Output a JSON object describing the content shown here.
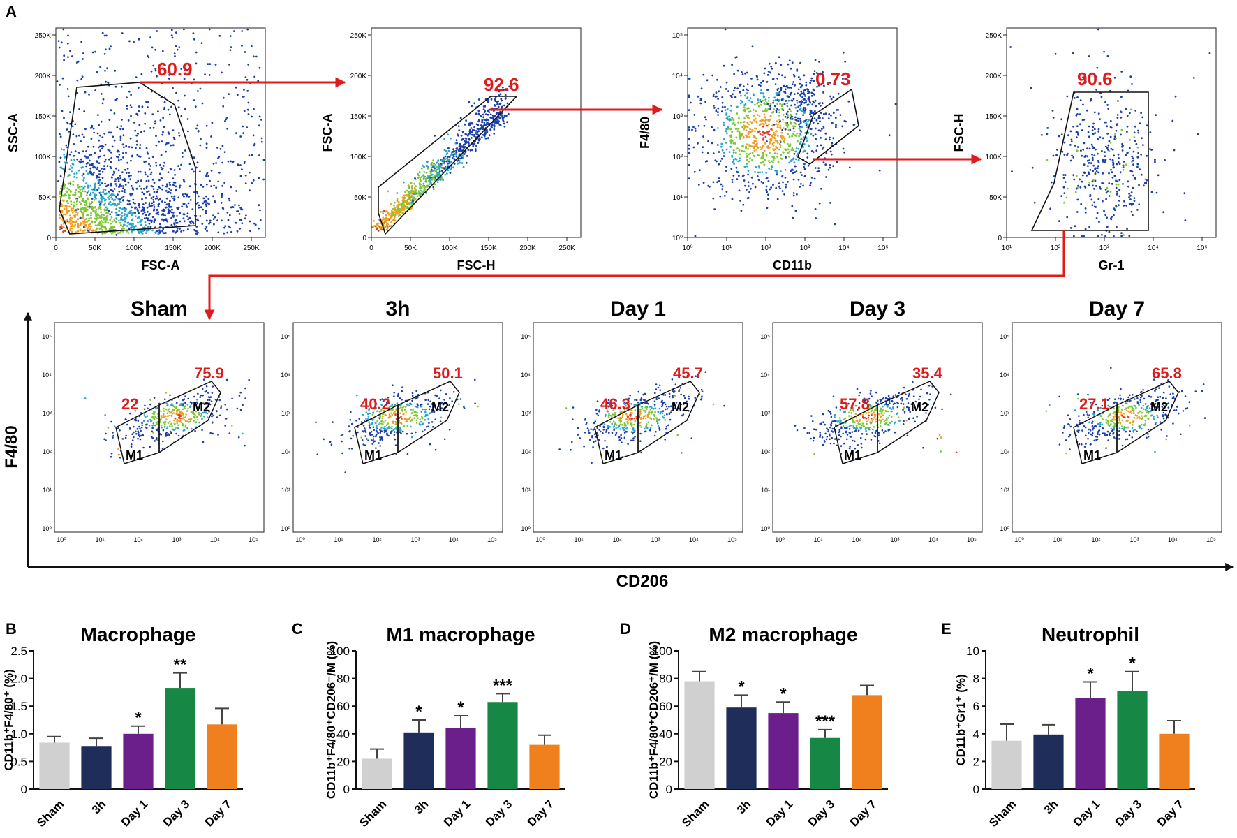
{
  "panel_labels": [
    "A",
    "B",
    "C",
    "D",
    "E"
  ],
  "colors": {
    "gate_pct": "#e01b1b",
    "arrow": "#e01b1b",
    "density_low": "#1c3fa8",
    "density_mid": "#2aa6c9",
    "density_high": "#7ec832",
    "density_peak": "#f0a020",
    "sham": "#d0d0d0",
    "h3": "#1f2d5a",
    "day1": "#6b1f8a",
    "day3": "#178745",
    "day7": "#f07f1e"
  },
  "gating": [
    {
      "id": "fsc-ssc",
      "xlabel": "FSC-A",
      "ylabel": "SSC-A",
      "x_ticks": [
        "0",
        "50K",
        "100K",
        "150K",
        "200K",
        "250K"
      ],
      "y_ticks": [
        "0",
        "50K",
        "100K",
        "150K",
        "200K",
        "250K"
      ],
      "gate_pct": "60.9"
    },
    {
      "id": "singlets",
      "xlabel": "FSC-H",
      "ylabel": "FSC-A",
      "x_ticks": [
        "0",
        "50K",
        "100K",
        "150K",
        "200K",
        "250K"
      ],
      "y_ticks": [
        "0",
        "50K",
        "100K",
        "150K",
        "200K",
        "250K"
      ],
      "gate_pct": "92.6"
    },
    {
      "id": "cd11b-f480",
      "xlabel": "CD11b",
      "ylabel": "F4/80",
      "x_ticks": [
        "10⁰",
        "10¹",
        "10²",
        "10³",
        "10⁴",
        "10⁵"
      ],
      "y_ticks": [
        "10⁰",
        "10¹",
        "10²",
        "10³",
        "10⁴",
        "10⁵"
      ],
      "gate_pct": "0.73"
    },
    {
      "id": "gr1",
      "xlabel": "Gr-1",
      "ylabel": "FSC-H",
      "x_ticks": [
        "10¹",
        "10²",
        "10³",
        "10⁴",
        "10⁵"
      ],
      "y_ticks": [
        "0",
        "50K",
        "100K",
        "150K",
        "200K",
        "250K"
      ],
      "gate_pct": "90.6"
    }
  ],
  "macro_panels": {
    "xlabel": "CD206",
    "ylabel": "F4/80",
    "log_ticks": [
      "10⁰",
      "10¹",
      "10²",
      "10³",
      "10⁴",
      "10⁵"
    ],
    "gate_m1": "M1",
    "gate_m2": "M2",
    "items": [
      {
        "title": "Sham",
        "m1_pct": "22",
        "m2_pct": "75.9"
      },
      {
        "title": "3h",
        "m1_pct": "40.2",
        "m2_pct": "50.1"
      },
      {
        "title": "Day 1",
        "m1_pct": "46.3",
        "m2_pct": "45.7"
      },
      {
        "title": "Day 3",
        "m1_pct": "57.8",
        "m2_pct": "35.4"
      },
      {
        "title": "Day 7",
        "m1_pct": "27.1",
        "m2_pct": "65.8"
      }
    ]
  },
  "chart_data": [
    {
      "panel": "B",
      "type": "bar",
      "title": "Macrophage",
      "ylabel": "CD11b⁺F4/80⁺ (%)",
      "categories": [
        "Sham",
        "3h",
        "Day 1",
        "Day 3",
        "Day 7"
      ],
      "values": [
        0.84,
        0.78,
        1.0,
        1.83,
        1.17
      ],
      "errors": [
        0.11,
        0.14,
        0.14,
        0.27,
        0.29
      ],
      "significance": [
        "",
        "",
        "*",
        "**",
        ""
      ],
      "ylim": [
        0,
        2.5
      ],
      "y_ticks": [
        "0",
        "0.5",
        "1.0",
        "1.5",
        "2.0",
        "2.5"
      ]
    },
    {
      "panel": "C",
      "type": "bar",
      "title": "M1 macrophage",
      "ylabel": "CD11b⁺F4/80⁺CD206⁻/M (%)",
      "categories": [
        "Sham",
        "3h",
        "Day 1",
        "Day 3",
        "Day 7"
      ],
      "values": [
        22,
        41,
        44,
        63,
        32
      ],
      "errors": [
        7,
        9,
        9,
        6,
        7
      ],
      "significance": [
        "",
        "*",
        "*",
        "***",
        ""
      ],
      "ylim": [
        0,
        100
      ],
      "y_ticks": [
        "0",
        "20",
        "40",
        "60",
        "80",
        "100"
      ]
    },
    {
      "panel": "D",
      "type": "bar",
      "title": "M2 macrophage",
      "ylabel": "CD11b⁺F4/80⁺CD206⁺/M (%)",
      "categories": [
        "Sham",
        "3h",
        "Day 1",
        "Day 3",
        "Day 7"
      ],
      "values": [
        78,
        59,
        55,
        37,
        68
      ],
      "errors": [
        7,
        9,
        8,
        6,
        7
      ],
      "significance": [
        "",
        "*",
        "*",
        "***",
        ""
      ],
      "ylim": [
        0,
        100
      ],
      "y_ticks": [
        "0",
        "20",
        "40",
        "60",
        "80",
        "100"
      ]
    },
    {
      "panel": "E",
      "type": "bar",
      "title": "Neutrophil",
      "ylabel": "CD11b⁺Gr1⁺ (%)",
      "categories": [
        "Sham",
        "3h",
        "Day 1",
        "Day 3",
        "Day 7"
      ],
      "values": [
        3.5,
        3.95,
        6.6,
        7.1,
        4.0
      ],
      "errors": [
        1.2,
        0.7,
        1.15,
        1.4,
        0.95
      ],
      "significance": [
        "",
        "",
        "*",
        "*",
        ""
      ],
      "ylim": [
        0,
        10
      ],
      "y_ticks": [
        "0",
        "2",
        "4",
        "6",
        "8",
        "10"
      ]
    }
  ]
}
